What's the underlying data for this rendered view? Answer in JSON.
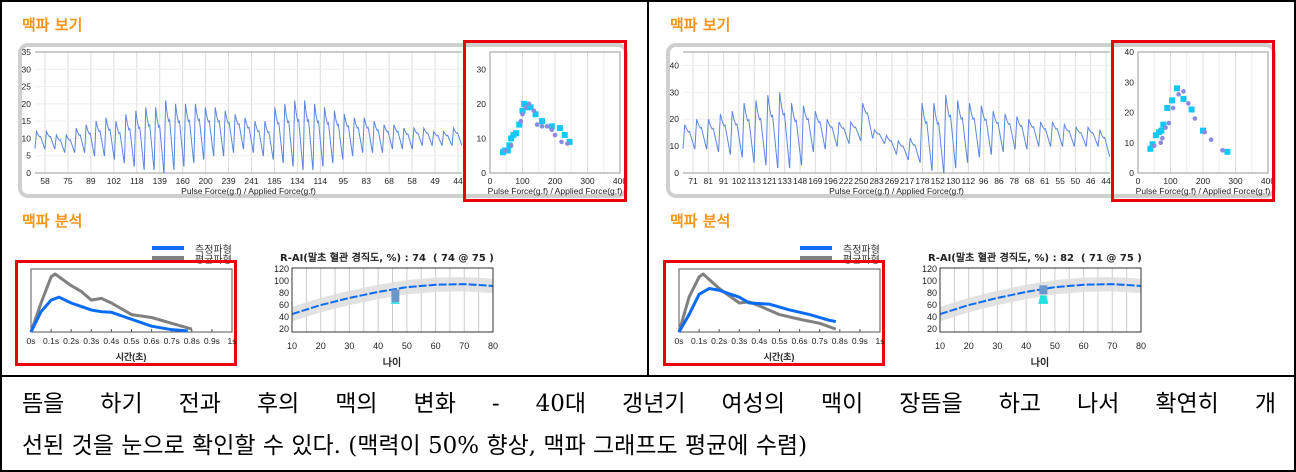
{
  "colors": {
    "title": "#f7941d",
    "highlight": "#e8000b",
    "wave": "#5b86e0",
    "measured": "#0a6cf5",
    "average": "#808080",
    "square": "#14c8f5",
    "dot": "#8a8ae0",
    "band": "#dddddd",
    "marker": "#6a97c8",
    "marker_low": "#22e0e0"
  },
  "panels": [
    {
      "view_title": "맥파 보기",
      "analysis_title": "맥파 분석",
      "legend": {
        "measured": "측정파형",
        "average": "평균파형"
      },
      "rai_title": "R-AI(말초 혈관 경직도, %) : 74  ( 74 @ 75 )"
    },
    {
      "view_title": "맥파 보기",
      "analysis_title": "맥파 분석",
      "legend": {
        "measured": "측정파형",
        "average": "평균파형"
      },
      "rai_title": "R-AI(말초 혈관 경직도, %) : 82  ( 71 @ 75 )"
    }
  ],
  "caption": {
    "line1": "뜸을 하기 전과 후의 맥의 변화 - 40대 갱년기 여성의 맥이 장뜸을 하고 나서 확연히 개",
    "line2": "선된 것을 눈으로 확인할 수 있다. (맥력이 50% 향상, 맥파 그래프도 평균에 수렴)"
  },
  "chart_data": [
    {
      "type": "line",
      "panel": 0,
      "xlabel": "Pulse Force(g.f) / Applied Force(g.f)",
      "ylim": [
        0,
        35
      ],
      "yticks": [
        0,
        5,
        10,
        15,
        20,
        25,
        30,
        35
      ],
      "xtick_labels": [
        "58",
        "75",
        "89",
        "102",
        "118",
        "139",
        "160",
        "200",
        "239",
        "241",
        "185",
        "134",
        "114",
        "95",
        "83",
        "68",
        "58",
        "49",
        "44"
      ],
      "cycle_peaks": [
        12,
        12,
        11,
        11,
        13,
        14,
        15,
        16,
        15,
        17,
        18,
        19,
        19,
        21,
        20,
        20,
        20,
        19,
        19,
        18,
        17,
        16,
        15,
        15,
        19,
        20,
        21,
        21,
        20,
        19,
        18,
        17,
        16,
        16,
        15,
        14,
        14,
        13,
        13,
        13,
        12,
        12,
        13
      ],
      "cycle_troughs": [
        7,
        7,
        6,
        6,
        6,
        5,
        5,
        4,
        3,
        2,
        1,
        1,
        0,
        1,
        2,
        3,
        4,
        5,
        5,
        6,
        7,
        6,
        5,
        4,
        3,
        2,
        1,
        1,
        2,
        3,
        4,
        5,
        6,
        6,
        6,
        7,
        7,
        7,
        8,
        8,
        8,
        8,
        8
      ]
    },
    {
      "type": "scatter",
      "panel": 0,
      "xlabel": "Pulse Force(g.f) / Applied Force(g.f)",
      "xlim": [
        0,
        400
      ],
      "ylim": [
        0,
        35
      ],
      "xticks": [
        0,
        100,
        200,
        300,
        400
      ],
      "yticks": [
        0,
        10,
        20,
        30
      ],
      "squares": [
        [
          40,
          6
        ],
        [
          45,
          6.5
        ],
        [
          55,
          6.5
        ],
        [
          60,
          8
        ],
        [
          65,
          10
        ],
        [
          72,
          11
        ],
        [
          80,
          11.5
        ],
        [
          90,
          14
        ],
        [
          100,
          18
        ],
        [
          105,
          20
        ],
        [
          115,
          19
        ],
        [
          125,
          19
        ],
        [
          140,
          17
        ],
        [
          160,
          15
        ],
        [
          190,
          13.5
        ],
        [
          215,
          13
        ],
        [
          230,
          11
        ],
        [
          245,
          9
        ]
      ],
      "dots": [
        [
          50,
          6.5
        ],
        [
          65,
          8
        ],
        [
          95,
          15
        ],
        [
          100,
          17
        ],
        [
          110,
          19
        ],
        [
          120,
          20
        ],
        [
          135,
          18
        ],
        [
          145,
          14
        ],
        [
          160,
          13.5
        ],
        [
          175,
          13.5
        ],
        [
          190,
          12.5
        ],
        [
          200,
          11
        ],
        [
          220,
          9
        ],
        [
          238,
          8.5
        ]
      ]
    },
    {
      "type": "line",
      "panel": 0,
      "xlabel": "시간(초)",
      "xlim": [
        0,
        1
      ],
      "xtick_labels": [
        "0s",
        "0.1s",
        "0.2s",
        "0.3s",
        "0.4s",
        "0.5s",
        "0.6s",
        "0.7s",
        "0.8s",
        "0.9s",
        "1s"
      ],
      "series": [
        {
          "name": "측정파형",
          "points": [
            [
              0,
              0
            ],
            [
              0.05,
              35
            ],
            [
              0.1,
              55
            ],
            [
              0.14,
              60
            ],
            [
              0.2,
              50
            ],
            [
              0.3,
              38
            ],
            [
              0.35,
              35
            ],
            [
              0.4,
              34
            ],
            [
              0.5,
              22
            ],
            [
              0.6,
              10
            ],
            [
              0.7,
              4
            ],
            [
              0.78,
              2
            ]
          ]
        },
        {
          "name": "평균파형",
          "points": [
            [
              0,
              0
            ],
            [
              0.05,
              50
            ],
            [
              0.1,
              95
            ],
            [
              0.12,
              100
            ],
            [
              0.2,
              80
            ],
            [
              0.25,
              70
            ],
            [
              0.3,
              55
            ],
            [
              0.35,
              58
            ],
            [
              0.4,
              50
            ],
            [
              0.5,
              30
            ],
            [
              0.6,
              25
            ],
            [
              0.7,
              15
            ],
            [
              0.8,
              5
            ]
          ]
        }
      ]
    },
    {
      "type": "line",
      "panel": 0,
      "xlabel": "나이",
      "xlim": [
        10,
        80
      ],
      "ylim": [
        15,
        122
      ],
      "xticks": [
        10,
        20,
        30,
        40,
        50,
        60,
        70,
        80
      ],
      "yticks": [
        20,
        40,
        60,
        80,
        100,
        120
      ],
      "curve": [
        [
          10,
          45
        ],
        [
          20,
          60
        ],
        [
          30,
          72
        ],
        [
          40,
          82
        ],
        [
          50,
          90
        ],
        [
          60,
          94
        ],
        [
          70,
          95
        ],
        [
          80,
          92
        ]
      ],
      "band": 12,
      "marker": {
        "age": 46,
        "bar": [
          65,
          86
        ],
        "low": [
          62,
          65
        ]
      }
    },
    {
      "type": "line",
      "panel": 1,
      "xlabel": "Pulse Force(g.f) / Applied Force(g.f)",
      "ylim": [
        0,
        45
      ],
      "yticks": [
        0,
        10,
        20,
        30,
        40
      ],
      "xtick_labels": [
        "71",
        "81",
        "91",
        "102",
        "113",
        "121",
        "133",
        "148",
        "169",
        "196",
        "222",
        "250",
        "283",
        "269",
        "217",
        "178",
        "152",
        "130",
        "112",
        "96",
        "86",
        "78",
        "68",
        "61",
        "55",
        "50",
        "46",
        "44"
      ],
      "cycle_peaks": [
        18,
        20,
        20,
        22,
        23,
        26,
        27,
        29,
        30,
        26,
        25,
        23,
        20,
        19,
        19,
        26,
        16,
        14,
        12,
        13,
        26,
        26,
        29,
        27,
        26,
        25,
        23,
        22,
        21,
        20,
        19,
        19,
        18,
        17,
        17,
        16
      ],
      "cycle_troughs": [
        9,
        9,
        8,
        7,
        6,
        4,
        3,
        2,
        2,
        3,
        8,
        9,
        10,
        11,
        12,
        13,
        11,
        7,
        5,
        4,
        1,
        0,
        2,
        4,
        6,
        7,
        8,
        9,
        9,
        10,
        10,
        10,
        10,
        10,
        10,
        6
      ]
    },
    {
      "type": "scatter",
      "panel": 1,
      "xlabel": "Pulse Force(g.f) / Applied Force(g.f)",
      "xlim": [
        0,
        400
      ],
      "ylim": [
        0,
        40
      ],
      "xticks": [
        0,
        100,
        200,
        300,
        400
      ],
      "yticks": [
        0,
        10,
        20,
        30,
        40
      ],
      "squares": [
        [
          38,
          8
        ],
        [
          45,
          9.5
        ],
        [
          55,
          12.5
        ],
        [
          65,
          13.5
        ],
        [
          72,
          14
        ],
        [
          78,
          16
        ],
        [
          90,
          21.5
        ],
        [
          105,
          24
        ],
        [
          120,
          28
        ],
        [
          140,
          24.5
        ],
        [
          165,
          21
        ],
        [
          200,
          14
        ],
        [
          275,
          7
        ]
      ],
      "dots": [
        [
          50,
          9
        ],
        [
          70,
          10
        ],
        [
          75,
          11.5
        ],
        [
          85,
          15
        ],
        [
          95,
          16.5
        ],
        [
          108,
          21.5
        ],
        [
          125,
          26
        ],
        [
          140,
          27
        ],
        [
          155,
          23
        ],
        [
          175,
          18
        ],
        [
          205,
          13.5
        ],
        [
          225,
          11
        ],
        [
          260,
          7.5
        ]
      ]
    },
    {
      "type": "line",
      "panel": 1,
      "xlabel": "시간(초)",
      "xlim": [
        0,
        1
      ],
      "xtick_labels": [
        "0s",
        "0.1s",
        "0.2s",
        "0.3s",
        "0.4s",
        "0.5s",
        "0.6s",
        "0.7s",
        "0.8s",
        "0.9s",
        "1s"
      ],
      "series": [
        {
          "name": "측정파형",
          "points": [
            [
              0,
              0
            ],
            [
              0.05,
              30
            ],
            [
              0.1,
              65
            ],
            [
              0.15,
              75
            ],
            [
              0.2,
              72
            ],
            [
              0.3,
              60
            ],
            [
              0.35,
              50
            ],
            [
              0.45,
              48
            ],
            [
              0.55,
              38
            ],
            [
              0.65,
              30
            ],
            [
              0.75,
              20
            ],
            [
              0.78,
              18
            ]
          ]
        },
        {
          "name": "평균파형",
          "points": [
            [
              0,
              0
            ],
            [
              0.05,
              60
            ],
            [
              0.1,
              95
            ],
            [
              0.12,
              100
            ],
            [
              0.2,
              75
            ],
            [
              0.3,
              50
            ],
            [
              0.35,
              52
            ],
            [
              0.4,
              45
            ],
            [
              0.5,
              30
            ],
            [
              0.6,
              22
            ],
            [
              0.7,
              15
            ],
            [
              0.78,
              5
            ]
          ]
        }
      ]
    },
    {
      "type": "line",
      "panel": 1,
      "xlabel": "나이",
      "xlim": [
        10,
        80
      ],
      "ylim": [
        15,
        122
      ],
      "xticks": [
        10,
        20,
        30,
        40,
        50,
        60,
        70,
        80
      ],
      "yticks": [
        20,
        40,
        60,
        80,
        100,
        120
      ],
      "curve": [
        [
          10,
          45
        ],
        [
          20,
          60
        ],
        [
          30,
          72
        ],
        [
          40,
          82
        ],
        [
          50,
          90
        ],
        [
          60,
          94
        ],
        [
          70,
          95
        ],
        [
          80,
          92
        ]
      ],
      "band": 12,
      "marker": {
        "age": 46,
        "bar": [
          78,
          93
        ],
        "low": [
          62,
          76
        ]
      }
    }
  ]
}
